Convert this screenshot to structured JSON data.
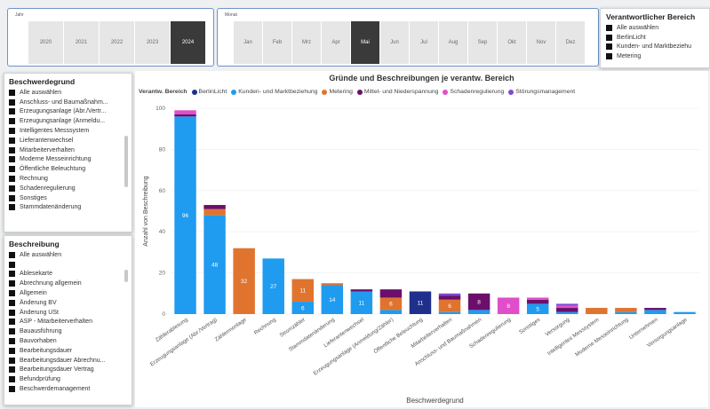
{
  "jahr_slicer": {
    "title": "Jahr",
    "years": [
      "2020",
      "2021",
      "2022",
      "2023",
      "2024"
    ],
    "selected": "2024"
  },
  "monat_slicer": {
    "title": "Monat",
    "months": [
      "Jan",
      "Feb",
      "Mrz",
      "Apr",
      "Mai",
      "Jun",
      "Jul",
      "Aug",
      "Sep",
      "Okt",
      "Nov",
      "Dez"
    ],
    "selected": "Mai"
  },
  "bereich_slicer": {
    "title": "Verantwortlicher Bereich",
    "items": [
      "Alle auswählen",
      "BerlinLicht",
      "Kunden- und Marktbeziehu",
      "Metering"
    ]
  },
  "beschwerdegrund_slicer": {
    "title": "Beschwerdegrund",
    "items": [
      "Alle auswählen",
      "Anschluss- und Baumaßnahm...",
      "Erzeugungsanlage (Abr./Vertr...",
      "Erzeugungsanlage (Anmeldu...",
      "Intelligentes Messsystem",
      "Lieferantenwechsel",
      "Mitarbeiterverhalten",
      "Moderne Messeinrichtung",
      "Öffentliche Beleuchtung",
      "Rechnung",
      "Schadenregulierung",
      "Sonstiges",
      "Stammdatenänderung"
    ]
  },
  "beschreibung_slicer": {
    "title": "Beschreibung",
    "items": [
      "Alle auswählen",
      "",
      "Ablesekarte",
      "Abrechnung allgemein",
      "Allgemein",
      "Änderung BV",
      "Änderung USt",
      "ASP - Mitarbeiterverhalten",
      "Bauausführung",
      "Bauvorhaben",
      "Bearbeitungsdauer",
      "Bearbeitungsdauer Abrechnu...",
      "Bearbeitungsdauer Vertrag",
      "Befundprüfung",
      "Beschwerdemanagement"
    ]
  },
  "chart_data": {
    "type": "bar",
    "stacked": true,
    "title": "Gründe und Beschreibungen je verantw. Bereich",
    "legend_title": "Verantw. Bereich",
    "xlabel": "Beschwerdegrund",
    "ylabel": "Anzahl von Beschreibung",
    "ylim": [
      0,
      100
    ],
    "yticks": [
      0,
      20,
      40,
      60,
      80,
      100
    ],
    "categories": [
      "Zählerablesung",
      "Erzeugungsanlage (Abr./Vertrag)",
      "Zählermontage",
      "Rechnung",
      "Stromzähler",
      "Stammdatenänderung",
      "Lieferantenwechsel",
      "Erzeugungsanlage (Anmeldung/Zähler)",
      "Öffentliche Beleuchtung",
      "Mitarbeiterverhalten",
      "Anschluss- und Baumaßnahmen",
      "Schadenregulierung",
      "Sonstiges",
      "Versorgung",
      "Intelligentes Messsystem",
      "Moderne Messeinrichtung",
      "Unternehmen",
      "Versorgungsanlage"
    ],
    "series": [
      {
        "name": "BerlinLicht",
        "color": "#1f2f8c",
        "values": [
          0,
          0,
          0,
          0,
          0,
          0,
          0,
          0,
          11,
          0,
          0,
          0,
          0,
          0,
          0,
          0,
          0,
          0
        ]
      },
      {
        "name": "Kunden- und Marktbeziehung",
        "color": "#1f9bf0",
        "values": [
          96,
          48,
          0,
          27,
          6,
          14,
          11,
          2,
          0,
          1,
          2,
          0,
          5,
          1,
          0,
          1,
          2,
          1
        ]
      },
      {
        "name": "Metering",
        "color": "#e0742f",
        "values": [
          0,
          3,
          32,
          0,
          11,
          1,
          0,
          6,
          0,
          6,
          0,
          0,
          0,
          0,
          3,
          2,
          0,
          0
        ]
      },
      {
        "name": "Mittel- und Niederspannung",
        "color": "#6b0f6b",
        "values": [
          1,
          2,
          0,
          0,
          0,
          0,
          1,
          4,
          0,
          2,
          8,
          0,
          2,
          2,
          0,
          0,
          1,
          0
        ]
      },
      {
        "name": "Schadenregulierung",
        "color": "#e04ec9",
        "values": [
          2,
          0,
          0,
          0,
          0,
          0,
          0,
          0,
          0,
          0,
          0,
          8,
          1,
          1,
          0,
          0,
          0,
          0
        ]
      },
      {
        "name": "Störungsmanagement",
        "color": "#7c4bd1",
        "values": [
          0,
          0,
          0,
          0,
          0,
          0,
          0,
          0,
          0,
          1,
          0,
          0,
          0,
          1,
          0,
          0,
          0,
          0
        ]
      }
    ],
    "data_labels": [
      {
        "category": "Zählerablesung",
        "series": "Kunden- und Marktbeziehung",
        "text": "96"
      },
      {
        "category": "Erzeugungsanlage (Abr./Vertrag)",
        "series": "Kunden- und Marktbeziehung",
        "text": "48"
      },
      {
        "category": "Zählermontage",
        "series": "Metering",
        "text": "32"
      },
      {
        "category": "Rechnung",
        "series": "Kunden- und Marktbeziehung",
        "text": "27"
      },
      {
        "category": "Stromzähler",
        "series": "Kunden- und Marktbeziehung",
        "text": "6"
      },
      {
        "category": "Stromzähler",
        "series": "Metering",
        "text": "11"
      },
      {
        "category": "Stammdatenänderung",
        "series": "Kunden- und Marktbeziehung",
        "text": "14"
      },
      {
        "category": "Lieferantenwechsel",
        "series": "Kunden- und Marktbeziehung",
        "text": "11"
      },
      {
        "category": "Erzeugungsanlage (Anmeldung/Zähler)",
        "series": "Metering",
        "text": "6"
      },
      {
        "category": "Öffentliche Beleuchtung",
        "series": "BerlinLicht",
        "text": "11"
      },
      {
        "category": "Mitarbeiterverhalten",
        "series": "Metering",
        "text": "6"
      },
      {
        "category": "Anschluss- und Baumaßnahmen",
        "series": "Mittel- und Niederspannung",
        "text": "8"
      },
      {
        "category": "Schadenregulierung",
        "series": "Schadenregulierung",
        "text": "8"
      },
      {
        "category": "Sonstiges",
        "series": "Kunden- und Marktbeziehung",
        "text": "5"
      }
    ]
  }
}
